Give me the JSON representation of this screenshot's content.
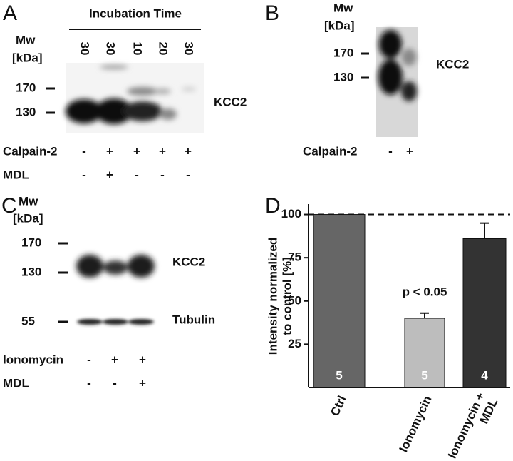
{
  "panels": {
    "a": {
      "label": "A",
      "header": "Incubation Time",
      "mw": "Mw",
      "unit": "[kDa]",
      "lane_labels": [
        "30",
        "30",
        "10",
        "20",
        "30"
      ],
      "markers": [
        "170",
        "130"
      ],
      "band_label": "KCC2",
      "rows": [
        {
          "name": "Calpain-2",
          "signs": [
            "-",
            "+",
            "+",
            "+",
            "+"
          ]
        },
        {
          "name": "MDL",
          "signs": [
            "-",
            "+",
            "-",
            "-",
            "-"
          ]
        }
      ]
    },
    "b": {
      "label": "B",
      "mw": "Mw",
      "unit": "[kDa]",
      "markers": [
        "170",
        "130"
      ],
      "band_label": "KCC2",
      "rows": [
        {
          "name": "Calpain-2",
          "signs": [
            "-",
            "+"
          ]
        }
      ]
    },
    "c": {
      "label": "C",
      "mw": "Mw",
      "unit": "[kDa]",
      "markers": [
        "170",
        "130",
        "55"
      ],
      "band_labels": [
        "KCC2",
        "Tubulin"
      ],
      "rows": [
        {
          "name": "Ionomycin",
          "signs": [
            "-",
            "+",
            "+"
          ]
        },
        {
          "name": "MDL",
          "signs": [
            "-",
            "-",
            "+"
          ]
        }
      ]
    }
  },
  "chart_data": {
    "type": "bar",
    "panel_label": "D",
    "ylabel": [
      "Intensity normalized",
      "to control [%]"
    ],
    "categories": [
      "Ctrl",
      "Ionomycin",
      "Ionomycin + MDL"
    ],
    "values": [
      100,
      40,
      86
    ],
    "errors": [
      0,
      3,
      9
    ],
    "colors": [
      "#666666",
      "#bdbdbd",
      "#333333"
    ],
    "n": [
      "5",
      "5",
      "4"
    ],
    "annotation": "p < 0.05",
    "ylim": [
      0,
      106
    ],
    "yticks": [
      25,
      50,
      75,
      100
    ],
    "reference_line": 100
  }
}
